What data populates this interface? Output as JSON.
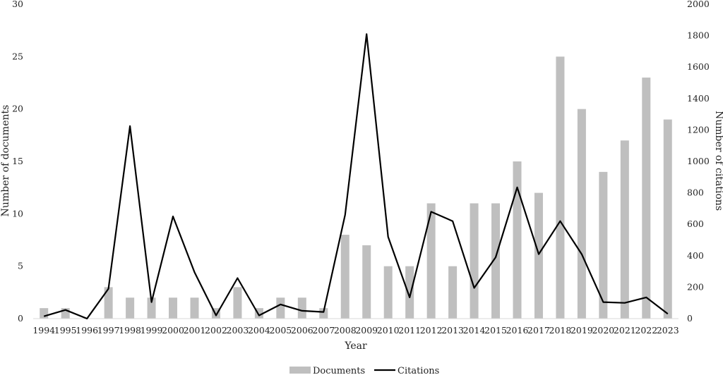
{
  "chart_data": {
    "type": "bar",
    "xlabel": "Year",
    "ylabel_left": "Number of documents",
    "ylabel_right": "Number of citations",
    "ylim_left": [
      0,
      30
    ],
    "ylim_right": [
      0,
      2000
    ],
    "yticks_left": [
      0,
      5,
      10,
      15,
      20,
      25,
      30
    ],
    "yticks_right": [
      0,
      200,
      400,
      600,
      800,
      1000,
      1200,
      1400,
      1600,
      1800,
      2000
    ],
    "grid": false,
    "legend_position": "bottom-center",
    "categories": [
      "1994",
      "1995",
      "1996",
      "1997",
      "1998",
      "1999",
      "2000",
      "2001",
      "2002",
      "2003",
      "2004",
      "2005",
      "2006",
      "2007",
      "2008",
      "2009",
      "2010",
      "2011",
      "2012",
      "2013",
      "2014",
      "2015",
      "2016",
      "2017",
      "2018",
      "2019",
      "2020",
      "2021",
      "2022",
      "2023"
    ],
    "series": [
      {
        "name": "Documents",
        "type": "bar",
        "axis": "left",
        "color": "#bfbfbf",
        "values": [
          1,
          1,
          0,
          3,
          2,
          2,
          2,
          2,
          1,
          3,
          1,
          2,
          2,
          1,
          8,
          7,
          5,
          5,
          11,
          5,
          11,
          11,
          15,
          12,
          25,
          20,
          14,
          17,
          23,
          19
        ]
      },
      {
        "name": "Citations",
        "type": "line",
        "axis": "right",
        "color": "#000000",
        "values": [
          15,
          55,
          0,
          190,
          1225,
          105,
          650,
          295,
          20,
          258,
          20,
          90,
          50,
          42,
          660,
          1810,
          520,
          135,
          680,
          620,
          195,
          390,
          835,
          410,
          620,
          410,
          105,
          100,
          135,
          30
        ]
      }
    ]
  }
}
